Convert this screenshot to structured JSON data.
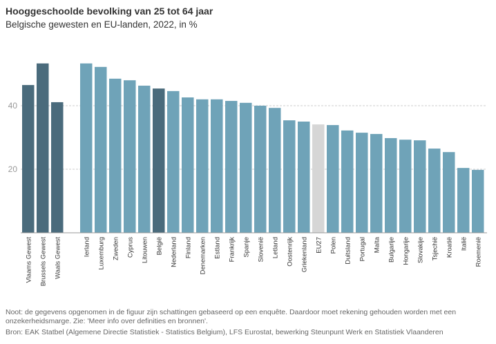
{
  "header": {
    "title": "Hooggeschoolde bevolking van 25 tot 64 jaar",
    "subtitle": "Belgische gewesten en EU-landen, 2022, in %"
  },
  "footer": {
    "note": "Noot: de gegevens opgenomen in de figuur zijn schattingen gebaseerd op een enquête. Daardoor moet rekening gehouden worden met een onzekerheidsmarge. Zie: 'Meer info over definities en bronnen'.",
    "source": "Bron: EAK Statbel (Algemene Directie Statistiek - Statistics Belgium), LFS Eurostat, bewerking Steunpunt Werk en Statistiek Vlaanderen"
  },
  "colors": {
    "belgium": "#4a6b7c",
    "country": "#6fa3b8",
    "eu27": "#d6d6d6",
    "grid": "#cccccc",
    "axis": "#999999"
  },
  "chart_data": {
    "type": "bar",
    "title": "Hooggeschoolde bevolking van 25 tot 64 jaar",
    "subtitle": "Belgische gewesten en EU-landen, 2022, in %",
    "xlabel": "",
    "ylabel": "",
    "ylim": [
      0,
      55
    ],
    "yticks": [
      20,
      40
    ],
    "grid": true,
    "groups": [
      {
        "name": "gewesten",
        "categories": [
          "Vlaams Gewest",
          "Brussels Gewest",
          "Waals Gewest"
        ],
        "values": [
          46.5,
          53.3,
          41.1
        ],
        "kinds": [
          "belgium",
          "belgium",
          "belgium"
        ]
      },
      {
        "name": "landen",
        "categories": [
          "Ierland",
          "Luxemburg",
          "Zweden",
          "Cyprus",
          "Litouwen",
          "België",
          "Nederland",
          "Finland",
          "Denemarken",
          "Estland",
          "Frankrijk",
          "Spanje",
          "Slovenië",
          "Letland",
          "Oostenrijk",
          "Griekenland",
          "EU27",
          "Polen",
          "Duitsland",
          "Portugal",
          "Malta",
          "Bulgarije",
          "Hongarije",
          "Slovakije",
          "Tsjechië",
          "Kroatië",
          "Italië",
          "Roemenië"
        ],
        "values": [
          53.3,
          52.2,
          48.5,
          48.0,
          46.3,
          45.4,
          44.6,
          42.6,
          42.0,
          42.0,
          41.5,
          40.9,
          40.0,
          39.3,
          35.4,
          35.0,
          34.1,
          33.9,
          32.2,
          31.5,
          31.1,
          29.8,
          29.3,
          29.1,
          26.5,
          25.4,
          20.4,
          19.8
        ],
        "kinds": [
          "country",
          "country",
          "country",
          "country",
          "country",
          "belgium",
          "country",
          "country",
          "country",
          "country",
          "country",
          "country",
          "country",
          "country",
          "country",
          "country",
          "eu27",
          "country",
          "country",
          "country",
          "country",
          "country",
          "country",
          "country",
          "country",
          "country",
          "country",
          "country"
        ]
      }
    ]
  }
}
